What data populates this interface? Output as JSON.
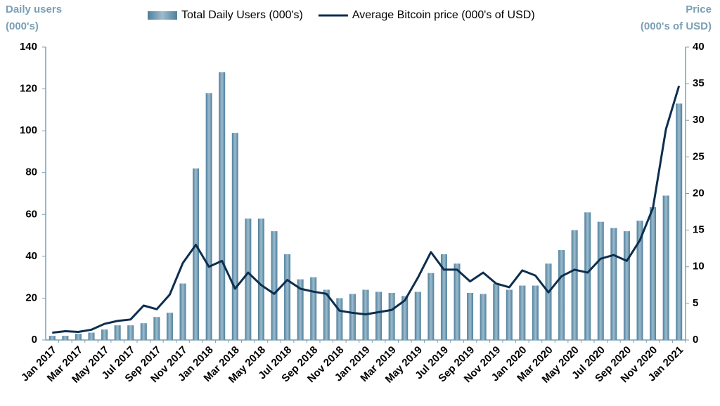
{
  "chart_data": {
    "type": "combo",
    "ylabel": [
      "Daily users",
      "(000's)"
    ],
    "y2label": [
      "Price",
      "(000's of USD)"
    ],
    "categories": [
      "Jan 2017",
      null,
      "Mar 2017",
      null,
      "May 2017",
      null,
      "Jul 2017",
      null,
      "Sep 2017",
      null,
      "Nov 2017",
      null,
      "Jan 2018",
      null,
      "Mar 2018",
      null,
      "May 2018",
      null,
      "Jul 2018",
      null,
      "Sep 2018",
      null,
      "Nov 2018",
      null,
      "Jan 2019",
      null,
      "Mar 2019",
      null,
      "May 2019",
      null,
      "Jul 2019",
      null,
      "Sep 2019",
      null,
      "Nov 2019",
      null,
      "Jan 2020",
      null,
      "Mar 2020",
      null,
      "May 2020",
      null,
      "Jul 2020",
      null,
      "Sep 2020",
      null,
      "Nov 2020",
      null,
      "Jan 2021"
    ],
    "series": [
      {
        "name": "Total Daily Users (000's)",
        "type": "bar",
        "color": "#4f7f9c",
        "values": [
          2,
          2,
          3,
          3.5,
          5,
          7,
          7,
          8,
          11,
          13,
          27,
          82,
          118,
          128,
          99,
          58,
          58,
          52,
          41,
          29,
          30,
          24,
          20,
          22,
          24,
          23,
          22.5,
          21,
          23,
          32,
          41,
          36.5,
          22.5,
          22,
          27,
          24,
          26,
          26,
          36.5,
          43,
          52.5,
          61,
          56.5,
          53.5,
          52,
          57,
          63.5,
          69,
          113
        ]
      },
      {
        "name": "Average Bitcoin price (000's of USD)",
        "type": "line",
        "axis": "y2",
        "color": "#0d2e4e",
        "values": [
          1.0,
          1.2,
          1.1,
          1.4,
          2.2,
          2.6,
          2.8,
          4.7,
          4.2,
          6.2,
          10.5,
          13.0,
          10.0,
          10.8,
          7.0,
          9.2,
          7.5,
          6.3,
          8.2,
          7.0,
          6.6,
          6.3,
          4.0,
          3.7,
          3.5,
          3.8,
          4.1,
          5.4,
          8.5,
          12.0,
          9.6,
          9.6,
          8.0,
          9.2,
          7.7,
          7.2,
          9.5,
          8.8,
          6.5,
          8.7,
          9.6,
          9.2,
          11.1,
          11.6,
          10.8,
          13.6,
          18.0,
          28.8,
          34.7
        ]
      }
    ],
    "ylim": [
      0,
      140
    ],
    "yticks": [
      0,
      20,
      40,
      60,
      80,
      100,
      120,
      140
    ],
    "y2lim": [
      0,
      40
    ],
    "y2ticks": [
      0,
      5,
      10,
      15,
      20,
      25,
      30,
      35,
      40
    ],
    "legend": "top"
  }
}
